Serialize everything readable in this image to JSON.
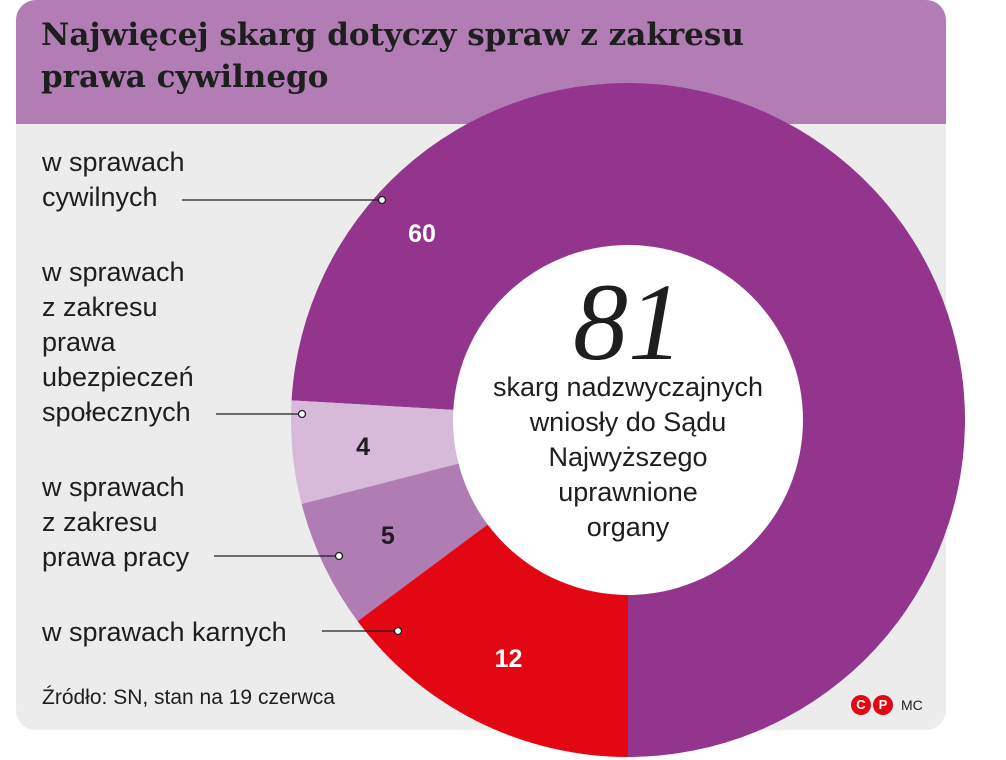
{
  "title": "Najwięcej skarg dotyczy spraw z zakresu\nprawa cywilnego",
  "center": {
    "number": "81",
    "text": "skarg nadzwyczajnych\nwniosły do Sądu\nNajwyższego\nuprawnione\norgany"
  },
  "chart_data": {
    "type": "pie",
    "title": "Najwięcej skarg dotyczy spraw z zakresu prawa cywilnego",
    "total": 81,
    "slices": [
      {
        "label": "w sprawach\ncywilnych",
        "value": 60,
        "value_label": "60",
        "color": "#93358c",
        "label_color": "#ffffff"
      },
      {
        "label": "w sprawach\nz zakresu\nprawa\nubezpieczeń\nspołecznych",
        "value": 4,
        "value_label": "4",
        "color": "#d7b9da",
        "label_color": "#1e1e1e"
      },
      {
        "label": "w sprawach\nz zakresu\nprawa pracy",
        "value": 5,
        "value_label": "5",
        "color": "#b07cb4",
        "label_color": "#1e1e1e"
      },
      {
        "label": "w sprawach karnych",
        "value": 12,
        "value_label": "12",
        "color": "#e30613",
        "label_color": "#ffffff"
      }
    ]
  },
  "footer": {
    "source": "Źródło: SN, stan na 19 czerwca",
    "logo_c": "C",
    "logo_p": "P",
    "author": "MC"
  },
  "colors": {
    "header_bg": "#b27db5",
    "card_bg": "#ececec",
    "center_bg": "#ffffff"
  }
}
